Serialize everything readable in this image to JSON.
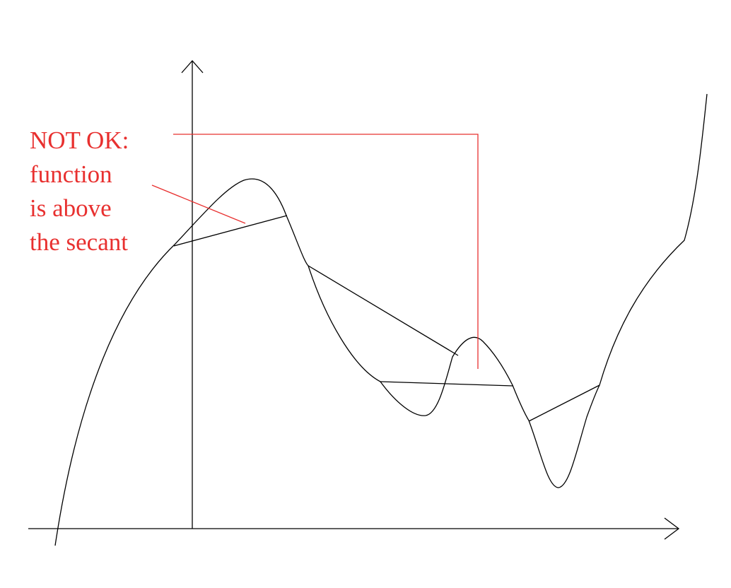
{
  "annotation": {
    "lines": [
      "NOT OK:",
      "function",
      "is above",
      "the secant"
    ]
  },
  "colors": {
    "annotation": "#e8302f",
    "lines": "#000000",
    "background": "#ffffff"
  },
  "icons": {
    "x_axis_arrow": "arrow-right-icon",
    "y_axis_arrow": "arrow-up-icon"
  }
}
